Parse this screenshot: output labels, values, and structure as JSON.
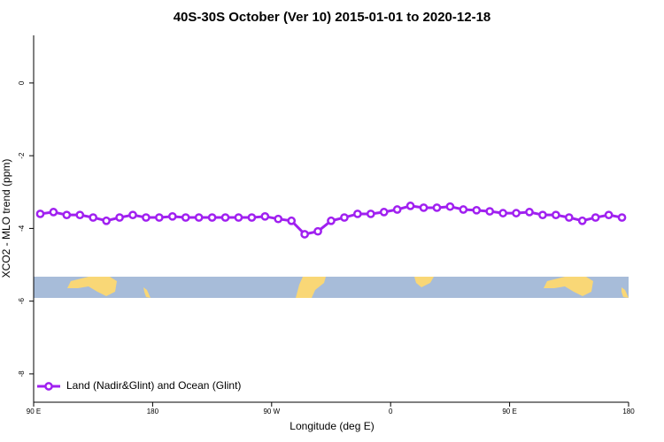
{
  "chart_data": {
    "type": "line",
    "title": "40S-30S October (Ver 10)   2015-01-01 to 2020-12-18",
    "xlabel": "Longitude (deg E)",
    "ylabel": "XCO2 - MLO trend (ppm)",
    "x": [
      95,
      105,
      115,
      125,
      135,
      145,
      155,
      165,
      175,
      185,
      195,
      205,
      215,
      225,
      235,
      245,
      255,
      265,
      275,
      285,
      295,
      305,
      315,
      325,
      335,
      345,
      355,
      365,
      375,
      385,
      395,
      405,
      415,
      425,
      435,
      445,
      455,
      465,
      475,
      485,
      495,
      505,
      515,
      525,
      535
    ],
    "series": [
      {
        "name": "Land (Nadir&Glint) and Ocean (Glint)",
        "color": "#a020f0",
        "values": [
          -3.6,
          -3.55,
          -3.63,
          -3.63,
          -3.7,
          -3.79,
          -3.7,
          -3.63,
          -3.7,
          -3.7,
          -3.67,
          -3.7,
          -3.7,
          -3.7,
          -3.7,
          -3.7,
          -3.7,
          -3.67,
          -3.74,
          -3.79,
          -4.16,
          -4.08,
          -3.79,
          -3.7,
          -3.6,
          -3.6,
          -3.55,
          -3.48,
          -3.38,
          -3.43,
          -3.43,
          -3.4,
          -3.48,
          -3.5,
          -3.53,
          -3.58,
          -3.58,
          -3.55,
          -3.63,
          -3.63,
          -3.7,
          -3.79,
          -3.7,
          -3.63,
          -3.7
        ]
      }
    ],
    "xlim": [
      90,
      540
    ],
    "xticks": [
      {
        "value": 90,
        "label": "90 E"
      },
      180,
      {
        "value": 270,
        "label": "90 W"
      },
      {
        "value": 360,
        "label": "0"
      },
      {
        "value": 450,
        "label": "90 E"
      },
      {
        "value": 540,
        "label": "180"
      }
    ],
    "ylim": [
      -8.78,
      1.31
    ],
    "yticks": [
      0,
      -2,
      -4,
      -6,
      -8
    ],
    "legend": "lower left"
  }
}
